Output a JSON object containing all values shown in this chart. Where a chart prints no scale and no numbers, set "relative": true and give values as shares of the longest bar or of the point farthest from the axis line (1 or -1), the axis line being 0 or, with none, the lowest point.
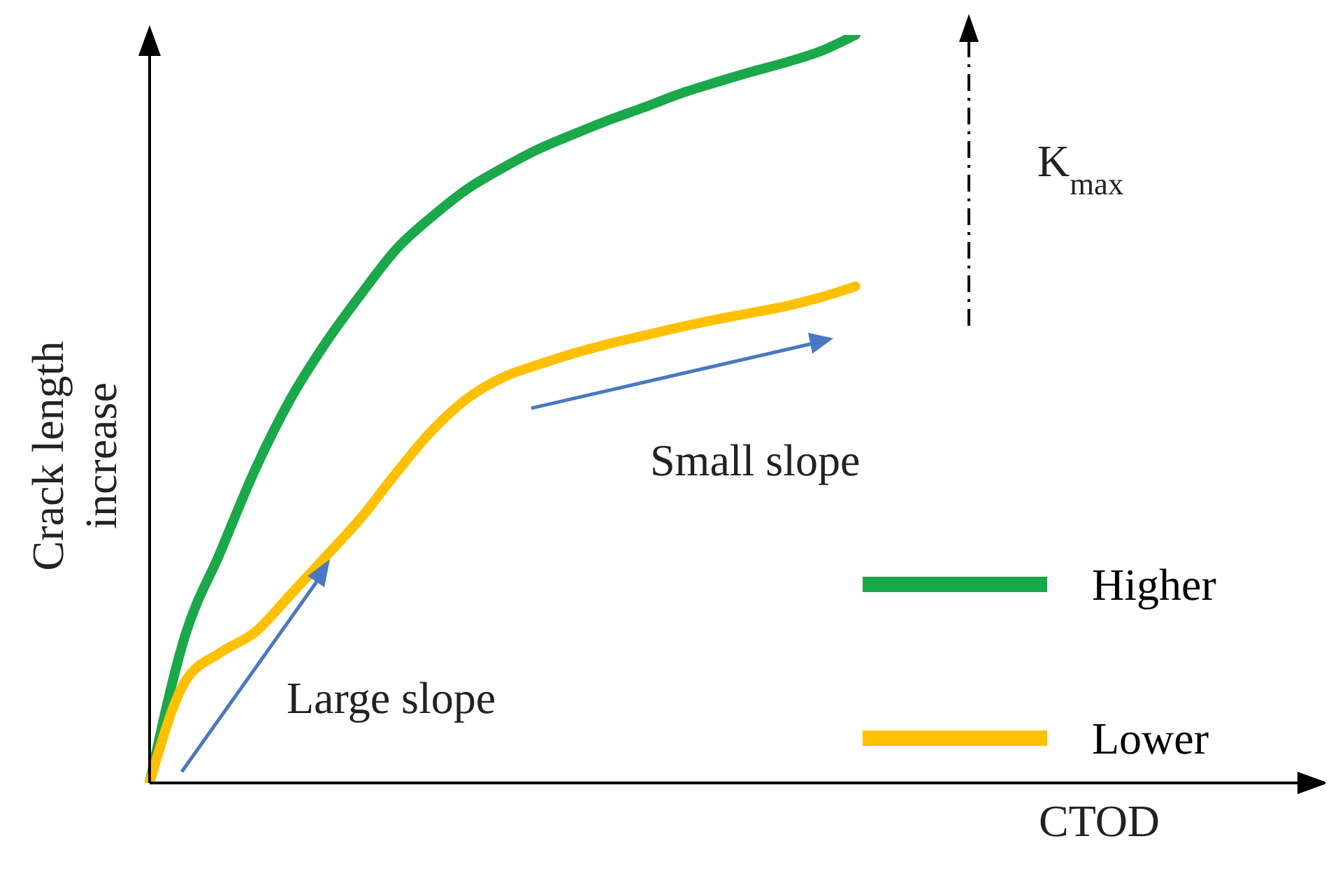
{
  "chart_data": {
    "type": "line",
    "relative": true,
    "xlabel": "CTOD",
    "ylabel": "Crack length increase",
    "categories": [
      null,
      null,
      null,
      null,
      null,
      null,
      null,
      null,
      null,
      null,
      null,
      null,
      null,
      null,
      null,
      null,
      null,
      null,
      null,
      null,
      null,
      null,
      null,
      null,
      null,
      null,
      null,
      null,
      null,
      null,
      null,
      null,
      null,
      null
    ],
    "series": [
      {
        "name": "Higher",
        "color": "#1aa84a",
        "values": [
          0,
          0.196,
          0.308,
          0.42,
          0.514,
          0.589,
          0.654,
          0.714,
          0.757,
          0.794,
          0.822,
          0.847,
          0.867,
          0.886,
          0.903,
          0.921,
          0.936,
          0.95,
          0.963,
          0.978,
          1,
          null,
          null,
          null,
          null,
          null,
          null,
          null,
          null,
          null,
          null,
          null,
          null,
          null
        ]
      },
      {
        "name": "Lower",
        "color": "#ffc000",
        "values": [
          0,
          0.135,
          0.174,
          0.202,
          0.252,
          0.303,
          0.355,
          0.415,
          0.471,
          0.514,
          0.542,
          0.559,
          0.574,
          0.587,
          0.598,
          0.609,
          0.619,
          0.628,
          0.637,
          0.649,
          0.664,
          null,
          null,
          null,
          null,
          null,
          null,
          null,
          null,
          null,
          null,
          null,
          null,
          null
        ]
      }
    ],
    "annotations": [
      "K$_{max}$",
      "Small slope",
      "Large slope"
    ],
    "legend": "bottom right",
    "grid": false,
    "marker": "none",
    "line_style": "solid"
  }
}
